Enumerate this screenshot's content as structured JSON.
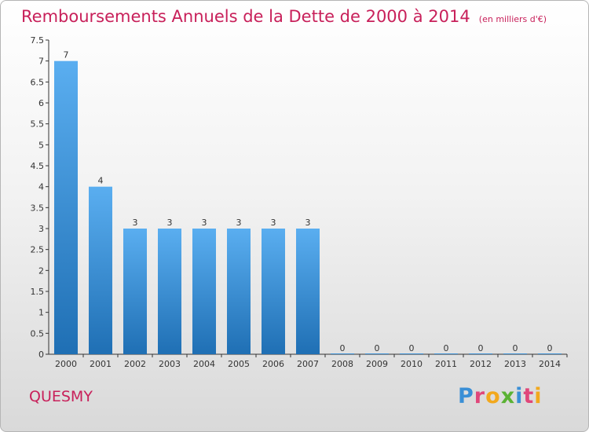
{
  "title": "Remboursements Annuels de la Dette de 2000 à 2014",
  "subtitle": "(en milliers d'€)",
  "commune": "QUESMY",
  "logo": {
    "p": "P",
    "r": "r",
    "o": "o",
    "x": "x",
    "i": "i",
    "t": "t",
    "i2": "i"
  },
  "colors": {
    "title": "#c8205a",
    "bar_top": "#5aaef0",
    "bar_bottom": "#1f6fb4"
  },
  "chart_data": {
    "type": "bar",
    "title": "Remboursements Annuels de la Dette de 2000 à 2014",
    "subtitle": "(en milliers d'€)",
    "xlabel": "",
    "ylabel": "",
    "ylim": [
      0,
      7.5
    ],
    "y_ticks": [
      "0",
      "0.5",
      "1",
      "1.5",
      "2",
      "2.5",
      "3",
      "3.5",
      "4",
      "4.5",
      "5",
      "5.5",
      "6",
      "6.5",
      "7",
      "7.5"
    ],
    "categories": [
      "2000",
      "2001",
      "2002",
      "2003",
      "2004",
      "2005",
      "2006",
      "2007",
      "2008",
      "2009",
      "2010",
      "2011",
      "2012",
      "2013",
      "2014"
    ],
    "values": [
      7,
      4,
      3,
      3,
      3,
      3,
      3,
      3,
      0,
      0,
      0,
      0,
      0,
      0,
      0
    ],
    "data_labels": [
      "7",
      "4",
      "3",
      "3",
      "3",
      "3",
      "3",
      "3",
      "0",
      "0",
      "0",
      "0",
      "0",
      "0",
      "0"
    ],
    "grid": false,
    "legend": "none"
  }
}
